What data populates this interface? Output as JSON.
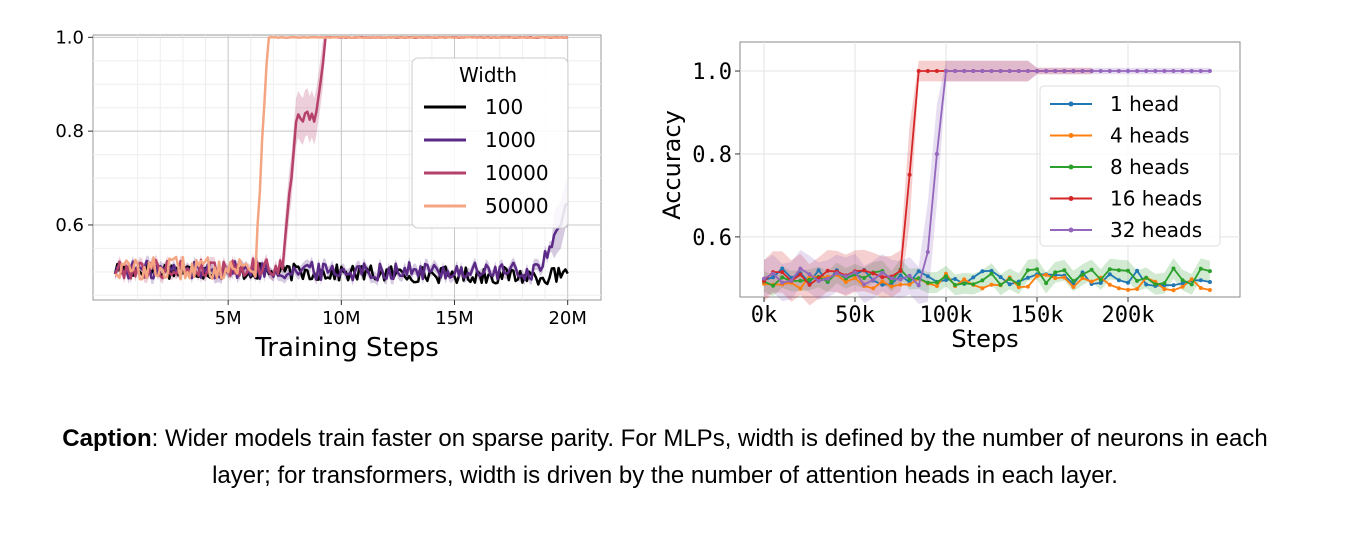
{
  "caption": {
    "label": "Caption",
    "text": ": Wider models train faster on sparse parity. For MLPs, width is defined by the number of neurons in each layer; for transformers, width is driven by the number of attention heads in each layer."
  },
  "chart_data": [
    {
      "type": "line",
      "xlabel": "Training Steps",
      "ylabel": "",
      "xlim": [
        0,
        20500000
      ],
      "ylim": [
        0.44,
        1.005
      ],
      "x_ticks": [
        5000000,
        10000000,
        15000000,
        20000000
      ],
      "x_tick_labels": [
        "5M",
        "10M",
        "15M",
        "20M"
      ],
      "y_ticks": [
        0.6,
        0.8,
        1.0
      ],
      "y_tick_labels": [
        "0.6",
        "0.8",
        "1.0"
      ],
      "grid": true,
      "legend": {
        "title": "Width",
        "position": "upper-right"
      },
      "series": [
        {
          "name": "100",
          "color": "#000000",
          "behavior": "stays near 0.5 through 20M"
        },
        {
          "name": "1000",
          "color": "#5b2a86",
          "rise_start": 19000000,
          "final": 0.66,
          "band": true
        },
        {
          "name": "10000",
          "color": "#b5416b",
          "rise_start": 7500000,
          "plateau": 0.83,
          "plateau_range": [
            7800000,
            9000000
          ],
          "reach_one": 9500000,
          "band": true
        },
        {
          "name": "50000",
          "color": "#f4a582",
          "rise_start": 6300000,
          "reach_one": 6800000
        }
      ]
    },
    {
      "type": "line",
      "xlabel": "Steps",
      "ylabel": "Accuracy",
      "xlim": [
        -3000,
        255000
      ],
      "ylim": [
        0.455,
        1.07
      ],
      "x_ticks": [
        0,
        50000,
        100000,
        150000,
        200000
      ],
      "x_tick_labels": [
        "0k",
        "50k",
        "100k",
        "150k",
        "200k"
      ],
      "y_ticks": [
        0.6,
        0.8,
        1.0
      ],
      "y_tick_labels": [
        "0.6",
        "0.8",
        "1.0"
      ],
      "grid": true,
      "legend": {
        "position": "upper-right"
      },
      "series": [
        {
          "name": "1 head",
          "color": "#1f77b4",
          "behavior": "stays near 0.5",
          "x_end": 245000
        },
        {
          "name": "4 heads",
          "color": "#ff7f0e",
          "behavior": "stays near 0.5",
          "x_end": 245000
        },
        {
          "name": "8 heads",
          "color": "#2ca02c",
          "behavior": "stays near 0.5",
          "x_end": 245000,
          "band": true
        },
        {
          "name": "16 heads",
          "color": "#d62728",
          "rise_start": 75000,
          "reach_one": 85000,
          "x_end": 180000,
          "band": true
        },
        {
          "name": "32 heads",
          "color": "#9467bd",
          "rise_start": 90000,
          "reach_one": 100000,
          "x_end": 245000,
          "band": true
        }
      ]
    }
  ]
}
